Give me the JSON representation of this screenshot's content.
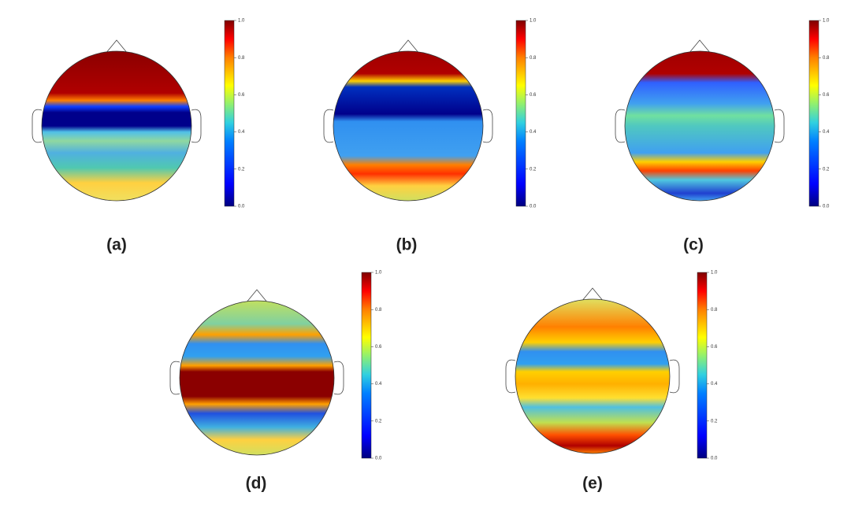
{
  "panels": [
    {
      "label": "(a)",
      "colorbar": {
        "ticks": [
          "0.0",
          "0.2",
          "0.4",
          "0.6",
          "0.8",
          "1.0"
        ]
      }
    },
    {
      "label": "(b)",
      "colorbar": {
        "ticks": [
          "0.0",
          "0.2",
          "0.4",
          "0.6",
          "0.8",
          "1.0"
        ]
      }
    },
    {
      "label": "(c)",
      "colorbar": {
        "ticks": [
          "0.0",
          "0.2",
          "0.4",
          "0.6",
          "0.8",
          "1.0"
        ]
      }
    },
    {
      "label": "(d)",
      "colorbar": {
        "ticks": [
          "0.0",
          "0.2",
          "0.4",
          "0.6",
          "0.8",
          "1.0"
        ]
      }
    },
    {
      "label": "(e)",
      "colorbar": {
        "ticks": [
          "0.0",
          "0.2",
          "0.4",
          "0.6",
          "0.8",
          "1.0"
        ]
      }
    }
  ]
}
